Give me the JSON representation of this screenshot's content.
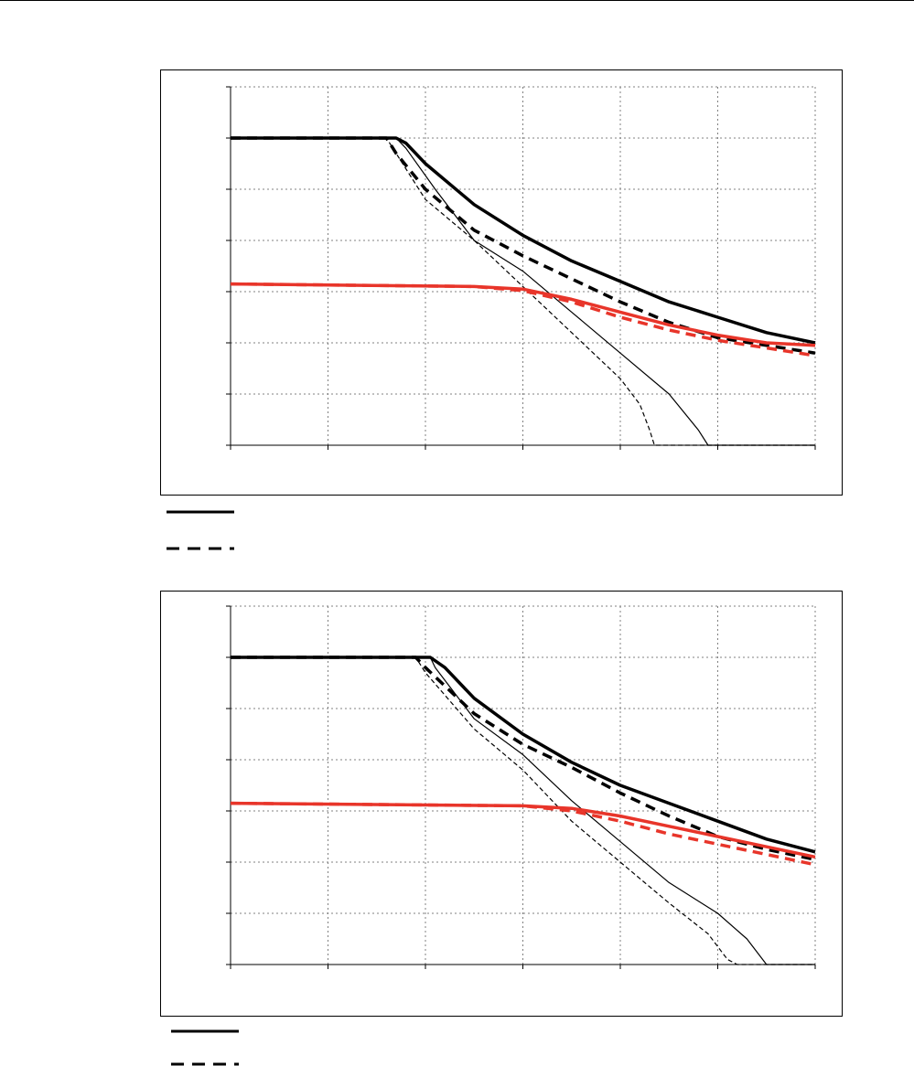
{
  "colors": {
    "black": "#000000",
    "red": "#e8352a",
    "grid": "#808080"
  },
  "legend": [
    {
      "style": "solid",
      "color": "#000000",
      "label": ""
    },
    {
      "style": "dashed",
      "color": "#000000",
      "label": ""
    }
  ],
  "chart_data": [
    {
      "type": "line",
      "title": "",
      "xlabel": "",
      "ylabel": "",
      "xlim": [
        0,
        6
      ],
      "ylim": [
        0,
        7
      ],
      "x_ticks": 6,
      "y_ticks": 7,
      "grid": true,
      "series": [
        {
          "style": "thick-solid",
          "color": "#000000",
          "points": [
            [
              0,
              6
            ],
            [
              1.7,
              6
            ],
            [
              1.8,
              5.9
            ],
            [
              2.0,
              5.5
            ],
            [
              2.5,
              4.7
            ],
            [
              3.0,
              4.1
            ],
            [
              3.5,
              3.6
            ],
            [
              4.0,
              3.2
            ],
            [
              4.5,
              2.8
            ],
            [
              5.0,
              2.5
            ],
            [
              5.5,
              2.2
            ],
            [
              6.0,
              2.0
            ]
          ]
        },
        {
          "style": "thick-dashed",
          "color": "#000000",
          "points": [
            [
              0,
              6
            ],
            [
              1.6,
              6
            ],
            [
              1.7,
              5.7
            ],
            [
              2.0,
              5.0
            ],
            [
              2.5,
              4.2
            ],
            [
              3.0,
              3.7
            ],
            [
              3.5,
              3.25
            ],
            [
              4.0,
              2.8
            ],
            [
              4.5,
              2.4
            ],
            [
              5.0,
              2.1
            ],
            [
              5.5,
              1.95
            ],
            [
              6.0,
              1.8
            ]
          ]
        },
        {
          "style": "thin-solid",
          "color": "#000000",
          "points": [
            [
              0,
              6
            ],
            [
              1.7,
              6
            ],
            [
              1.8,
              5.8
            ],
            [
              2.1,
              5.0
            ],
            [
              2.5,
              4.0
            ],
            [
              3.0,
              3.4
            ],
            [
              3.5,
              2.6
            ],
            [
              4.0,
              1.8
            ],
            [
              4.5,
              1.0
            ],
            [
              4.8,
              0.3
            ],
            [
              4.9,
              0
            ],
            [
              6.0,
              0
            ]
          ]
        },
        {
          "style": "thin-dashed",
          "color": "#000000",
          "points": [
            [
              0,
              6
            ],
            [
              1.6,
              6
            ],
            [
              1.7,
              5.7
            ],
            [
              2.0,
              4.8
            ],
            [
              2.5,
              4.0
            ],
            [
              3.0,
              3.1
            ],
            [
              3.5,
              2.2
            ],
            [
              4.0,
              1.3
            ],
            [
              4.2,
              0.8
            ],
            [
              4.3,
              0.3
            ],
            [
              4.35,
              0
            ],
            [
              6.0,
              0
            ]
          ]
        },
        {
          "style": "thick-solid",
          "color": "#e8352a",
          "points": [
            [
              0,
              3.15
            ],
            [
              2.5,
              3.1
            ],
            [
              3.0,
              3.05
            ],
            [
              3.5,
              2.85
            ],
            [
              4.0,
              2.6
            ],
            [
              4.5,
              2.35
            ],
            [
              5.0,
              2.15
            ],
            [
              5.5,
              2.0
            ],
            [
              6.0,
              1.95
            ]
          ]
        },
        {
          "style": "thick-dashed",
          "color": "#e8352a",
          "points": [
            [
              0,
              3.15
            ],
            [
              2.5,
              3.1
            ],
            [
              3.0,
              3.02
            ],
            [
              3.5,
              2.8
            ],
            [
              4.0,
              2.5
            ],
            [
              4.5,
              2.25
            ],
            [
              5.0,
              2.05
            ],
            [
              5.5,
              1.9
            ],
            [
              6.0,
              1.75
            ]
          ]
        }
      ]
    },
    {
      "type": "line",
      "title": "",
      "xlabel": "",
      "ylabel": "",
      "xlim": [
        0,
        6
      ],
      "ylim": [
        0,
        7
      ],
      "x_ticks": 6,
      "y_ticks": 7,
      "grid": true,
      "series": [
        {
          "style": "thick-solid",
          "color": "#000000",
          "points": [
            [
              0,
              6
            ],
            [
              2.05,
              6
            ],
            [
              2.2,
              5.8
            ],
            [
              2.5,
              5.2
            ],
            [
              3.0,
              4.5
            ],
            [
              3.5,
              3.95
            ],
            [
              4.0,
              3.5
            ],
            [
              4.5,
              3.15
            ],
            [
              5.0,
              2.8
            ],
            [
              5.5,
              2.45
            ],
            [
              6.0,
              2.2
            ]
          ]
        },
        {
          "style": "thick-dashed",
          "color": "#000000",
          "points": [
            [
              0,
              6
            ],
            [
              1.9,
              6
            ],
            [
              2.0,
              5.8
            ],
            [
              2.5,
              4.9
            ],
            [
              3.0,
              4.3
            ],
            [
              3.5,
              3.85
            ],
            [
              4.0,
              3.35
            ],
            [
              4.5,
              2.9
            ],
            [
              5.0,
              2.5
            ],
            [
              5.5,
              2.25
            ],
            [
              6.0,
              2.05
            ]
          ]
        },
        {
          "style": "thin-solid",
          "color": "#000000",
          "points": [
            [
              0,
              6
            ],
            [
              2.05,
              6
            ],
            [
              2.1,
              5.8
            ],
            [
              2.5,
              4.8
            ],
            [
              3.0,
              4.1
            ],
            [
              3.5,
              3.2
            ],
            [
              4.0,
              2.4
            ],
            [
              4.5,
              1.6
            ],
            [
              5.0,
              1.0
            ],
            [
              5.3,
              0.5
            ],
            [
              5.5,
              0
            ],
            [
              6.0,
              0
            ]
          ]
        },
        {
          "style": "thin-dashed",
          "color": "#000000",
          "points": [
            [
              0,
              6
            ],
            [
              1.9,
              6
            ],
            [
              2.0,
              5.7
            ],
            [
              2.5,
              4.6
            ],
            [
              3.0,
              3.8
            ],
            [
              3.5,
              2.8
            ],
            [
              4.0,
              2.0
            ],
            [
              4.5,
              1.2
            ],
            [
              4.9,
              0.6
            ],
            [
              5.1,
              0.1
            ],
            [
              5.2,
              0
            ],
            [
              6.0,
              0
            ]
          ]
        },
        {
          "style": "thick-solid",
          "color": "#e8352a",
          "points": [
            [
              0,
              3.15
            ],
            [
              3.0,
              3.1
            ],
            [
              3.5,
              3.05
            ],
            [
              4.0,
              2.9
            ],
            [
              4.5,
              2.7
            ],
            [
              5.0,
              2.5
            ],
            [
              5.5,
              2.3
            ],
            [
              6.0,
              2.1
            ]
          ]
        },
        {
          "style": "thick-dashed",
          "color": "#e8352a",
          "points": [
            [
              0,
              3.15
            ],
            [
              3.0,
              3.1
            ],
            [
              3.5,
              3.0
            ],
            [
              4.0,
              2.8
            ],
            [
              4.5,
              2.55
            ],
            [
              5.0,
              2.35
            ],
            [
              5.5,
              2.15
            ],
            [
              6.0,
              1.95
            ]
          ]
        }
      ]
    }
  ]
}
